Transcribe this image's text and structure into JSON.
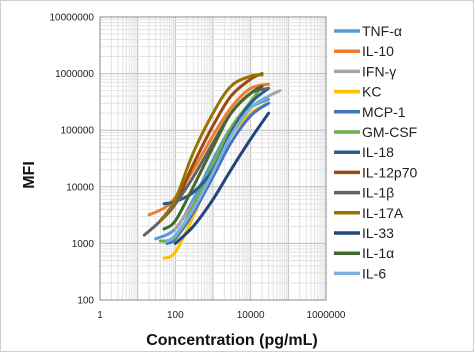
{
  "chart_data": {
    "type": "line",
    "xlabel": "Concentration (pg/mL)",
    "ylabel": "MFI",
    "x_scale": "log",
    "y_scale": "log",
    "xlim": [
      1,
      1000000
    ],
    "ylim": [
      100,
      10000000
    ],
    "x_ticks": [
      "1",
      "100",
      "10000",
      "1000000"
    ],
    "y_ticks": [
      "10000000",
      "1000000",
      "100000",
      "10000",
      "1000",
      "100"
    ],
    "grid": true,
    "legend_position": "right",
    "series": [
      {
        "name": "TNF-α",
        "color": "#5b9bd5",
        "x": [
          30,
          100,
          300,
          1000,
          3000,
          10000,
          30000
        ],
        "y": [
          1200,
          1800,
          6000,
          30000,
          110000,
          250000,
          350000
        ]
      },
      {
        "name": "IL-10",
        "color": "#ed7d31",
        "x": [
          20,
          50,
          100,
          300,
          1000,
          3000,
          10000,
          30000
        ],
        "y": [
          3200,
          4200,
          6500,
          20000,
          80000,
          250000,
          550000,
          650000
        ]
      },
      {
        "name": "IFN-γ",
        "color": "#a5a5a5",
        "x": [
          100,
          300,
          1000,
          3000,
          10000,
          30000,
          60000
        ],
        "y": [
          1800,
          5000,
          20000,
          90000,
          250000,
          400000,
          500000
        ]
      },
      {
        "name": "KC",
        "color": "#ffc000",
        "x": [
          50,
          100,
          300,
          1000,
          3000,
          10000,
          30000
        ],
        "y": [
          550,
          700,
          3000,
          20000,
          80000,
          200000,
          300000
        ]
      },
      {
        "name": "MCP-1",
        "color": "#4472c4",
        "x": [
          60,
          100,
          300,
          1000,
          3000,
          10000,
          30000
        ],
        "y": [
          1000,
          1200,
          3500,
          15000,
          60000,
          180000,
          300000
        ]
      },
      {
        "name": "GM-CSF",
        "color": "#70ad47",
        "x": [
          40,
          100,
          300,
          1000,
          3000,
          10000,
          20000
        ],
        "y": [
          1100,
          1300,
          4500,
          25000,
          110000,
          320000,
          600000
        ]
      },
      {
        "name": "IL-18",
        "color": "#255e91",
        "x": [
          50,
          100,
          300,
          1000,
          3000,
          10000,
          30000
        ],
        "y": [
          5000,
          5500,
          8000,
          20000,
          90000,
          300000,
          550000
        ]
      },
      {
        "name": "IL-12p70",
        "color": "#9e480e",
        "x": [
          40,
          100,
          300,
          1000,
          3000,
          10000,
          20000
        ],
        "y": [
          2500,
          5000,
          25000,
          120000,
          400000,
          800000,
          1000000
        ]
      },
      {
        "name": "IL-1β",
        "color": "#636363",
        "x": [
          15,
          40,
          100,
          300,
          1000,
          3000,
          10000,
          30000
        ],
        "y": [
          1400,
          2500,
          5000,
          15000,
          60000,
          200000,
          450000,
          550000
        ]
      },
      {
        "name": "IL-17A",
        "color": "#997300",
        "x": [
          40,
          100,
          300,
          1000,
          3000,
          10000,
          20000
        ],
        "y": [
          2500,
          6000,
          40000,
          200000,
          600000,
          900000,
          950000
        ]
      },
      {
        "name": "IL-33",
        "color": "#264478",
        "x": [
          100,
          300,
          1000,
          3000,
          10000,
          30000
        ],
        "y": [
          1000,
          2000,
          6000,
          20000,
          70000,
          200000
        ]
      },
      {
        "name": "IL-1α",
        "color": "#43682b",
        "x": [
          50,
          100,
          300,
          1000,
          3000,
          10000,
          20000
        ],
        "y": [
          1800,
          2500,
          10000,
          50000,
          200000,
          450000,
          600000
        ]
      },
      {
        "name": "IL-6",
        "color": "#7cafdd",
        "x": [
          60,
          100,
          300,
          1000,
          3000,
          10000,
          30000
        ],
        "y": [
          1100,
          1400,
          4000,
          18000,
          80000,
          250000,
          400000
        ]
      }
    ]
  }
}
